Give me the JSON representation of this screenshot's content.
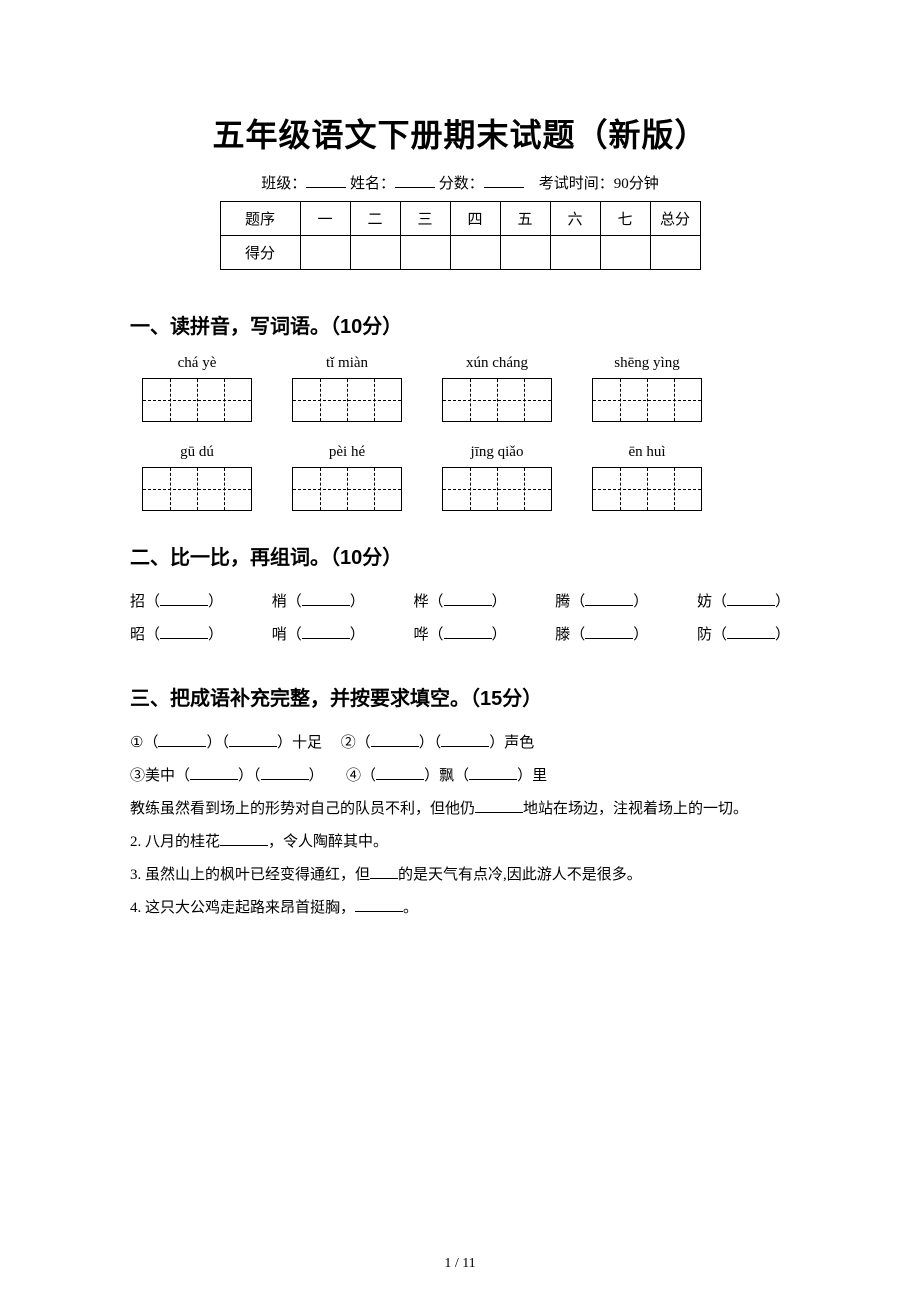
{
  "title": "五年级语文下册期末试题（新版）",
  "info": {
    "class_label": "班级：",
    "name_label": "姓名：",
    "score_label": "分数：",
    "exam_time_label": "考试时间：",
    "exam_time_value": "90分钟"
  },
  "score_table": {
    "row_label_1": "题序",
    "columns": [
      "一",
      "二",
      "三",
      "四",
      "五",
      "六",
      "七",
      "总分"
    ],
    "row_label_2": "得分"
  },
  "sections": {
    "s1": {
      "heading": "一、读拼音，写词语。（10分）",
      "pinyin_row_1": [
        "chá yè",
        "tǐ miàn",
        "xún cháng",
        "shēng yìng"
      ],
      "pinyin_row_2": [
        "gū dú",
        "pèi hé",
        "jīng qiǎo",
        "ēn huì"
      ]
    },
    "s2": {
      "heading": "二、比一比，再组词。（10分）",
      "pairs": [
        [
          "招",
          "昭"
        ],
        [
          "梢",
          "哨"
        ],
        [
          "桦",
          "哗"
        ],
        [
          "腾",
          "滕"
        ],
        [
          "妨",
          "防"
        ]
      ]
    },
    "s3": {
      "heading": "三、把成语补充完整，并按要求填空。（15分）",
      "line1a": "①（",
      "line1b": "）（",
      "line1c": "）十足",
      "line1d": "②（",
      "line1e": "）（",
      "line1f": "）声色",
      "line2a": "③美中（",
      "line2b": "）（",
      "line2c": "）",
      "line2d": "④（",
      "line2e": "）飘（",
      "line2f": "）里",
      "sentence1a": "教练虽然看到场上的形势对自己的队员不利，但他仍",
      "sentence1b": "地站在场边，注视着场上的一切。",
      "q2a": "2. 八月的桂花",
      "q2b": "，令人陶醉其中。",
      "q3a": "3. 虽然山上的枫叶已经变得通红，但",
      "q3b": "的是天气有点冷,因此游人不是很多。",
      "q4a": "4. 这只大公鸡走起路来昂首挺胸，",
      "q4b": "。"
    }
  },
  "page_number": "1 / 11"
}
